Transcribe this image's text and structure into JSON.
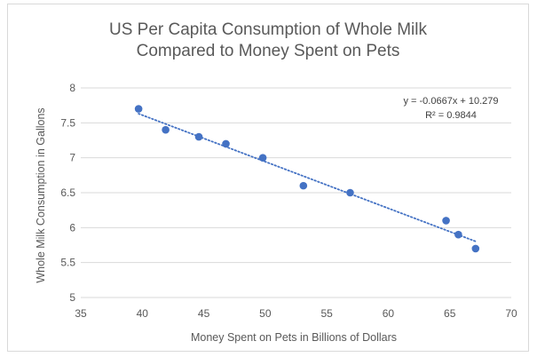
{
  "chart_data": {
    "type": "scatter",
    "title_lines": [
      "US Per Capita Consumption of Whole Milk",
      "Compared to Money Spent on Pets"
    ],
    "xlabel": "Money Spent on Pets in Billions of Dollars",
    "ylabel": "Whole Milk Consumption in Gallons",
    "xlim": [
      35,
      70
    ],
    "ylim": [
      5,
      8
    ],
    "xticks": [
      "35",
      "40",
      "45",
      "50",
      "55",
      "60",
      "65",
      "70"
    ],
    "yticks": [
      "5",
      "5.5",
      "6",
      "6.5",
      "7",
      "7.5",
      "8"
    ],
    "grid": "horizontal",
    "points": [
      {
        "x": 39.7,
        "y": 7.7
      },
      {
        "x": 41.9,
        "y": 7.4
      },
      {
        "x": 44.6,
        "y": 7.3
      },
      {
        "x": 46.8,
        "y": 7.2
      },
      {
        "x": 49.8,
        "y": 7.0
      },
      {
        "x": 53.1,
        "y": 6.6
      },
      {
        "x": 56.9,
        "y": 6.5
      },
      {
        "x": 64.7,
        "y": 6.1
      },
      {
        "x": 65.7,
        "y": 5.9
      },
      {
        "x": 67.1,
        "y": 5.7
      }
    ],
    "trendline": {
      "type": "linear",
      "slope": -0.0667,
      "intercept": 10.279,
      "equation": "y = -0.0667x + 10.279",
      "r_squared": "R² = 0.9844",
      "style": "dotted"
    },
    "colors": {
      "marker": "#4472c4",
      "trendline": "#4472c4",
      "grid": "#d9d9d9",
      "text": "#595959"
    }
  }
}
